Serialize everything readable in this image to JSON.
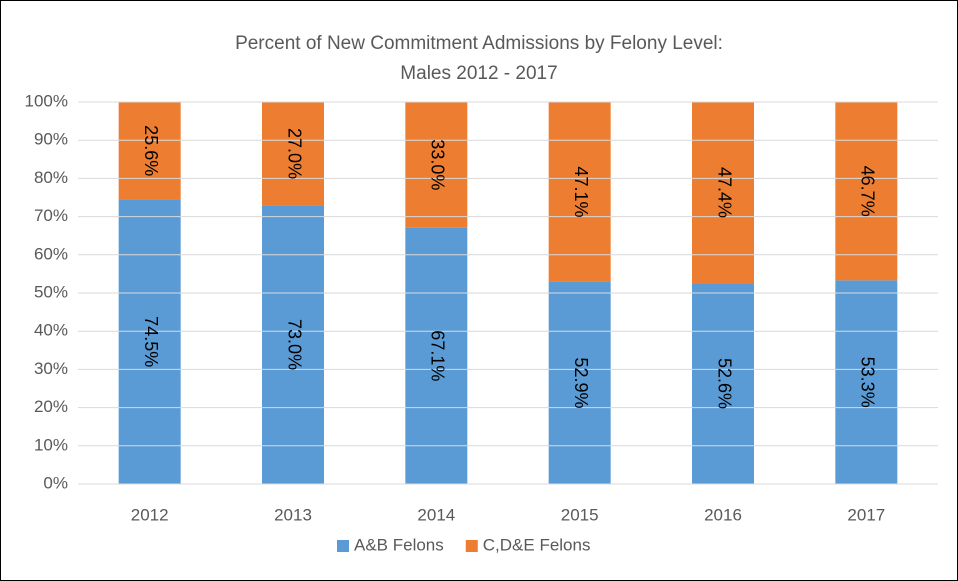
{
  "chart_data": {
    "type": "stacked_bar",
    "title": [
      "Percent of New Commitment Admissions by Felony Level:",
      "Males 2012 - 2017"
    ],
    "categories": [
      "2012",
      "2013",
      "2014",
      "2015",
      "2016",
      "2017"
    ],
    "series": [
      {
        "name": "A&B Felons",
        "color": "#5b9bd5",
        "values": [
          74.5,
          73.0,
          67.1,
          52.9,
          52.6,
          53.3
        ],
        "value_labels": [
          "74.5%",
          "73.0%",
          "67.1%",
          "52.9%",
          "52.6%",
          "53.3%"
        ]
      },
      {
        "name": "C,D&E Felons",
        "color": "#ed7d31",
        "values": [
          25.6,
          27.0,
          33.0,
          47.1,
          47.4,
          46.7
        ],
        "value_labels": [
          "25.6%",
          "27.0%",
          "33.0%",
          "47.1%",
          "47.4%",
          "46.7%"
        ]
      }
    ],
    "ylim": [
      0,
      100
    ],
    "yticks": [
      {
        "value": 0,
        "label": "0%"
      },
      {
        "value": 10,
        "label": "10%"
      },
      {
        "value": 20,
        "label": "20%"
      },
      {
        "value": 30,
        "label": "30%"
      },
      {
        "value": 40,
        "label": "40%"
      },
      {
        "value": 50,
        "label": "50%"
      },
      {
        "value": 60,
        "label": "60%"
      },
      {
        "value": 70,
        "label": "70%"
      },
      {
        "value": 80,
        "label": "80%"
      },
      {
        "value": 90,
        "label": "90%"
      },
      {
        "value": 100,
        "label": "100%"
      }
    ],
    "grid": true,
    "legend": "bottom"
  }
}
